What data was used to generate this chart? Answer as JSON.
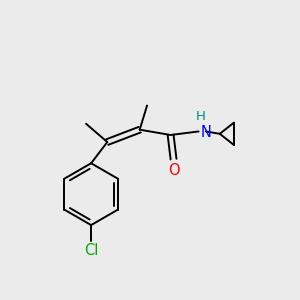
{
  "background_color": "#ebebeb",
  "bond_color": "#000000",
  "atom_colors": {
    "O": "#ff0000",
    "N": "#0000ff",
    "H": "#008b8b",
    "Cl": "#00aa00"
  },
  "font_size": 9.5,
  "figsize": [
    3.0,
    3.0
  ],
  "dpi": 100,
  "xlim": [
    0,
    10
  ],
  "ylim": [
    0,
    10
  ]
}
